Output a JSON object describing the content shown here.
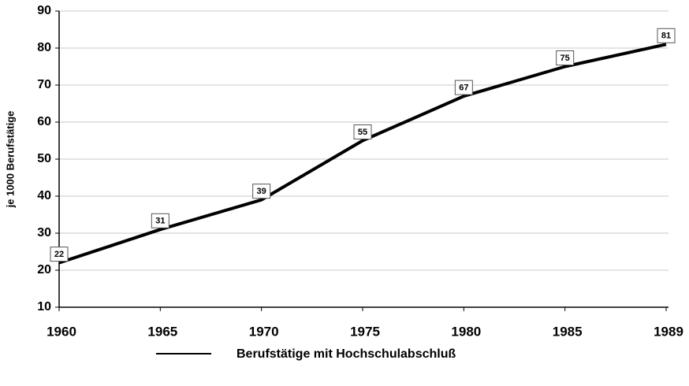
{
  "chart_data": {
    "type": "line",
    "categories": [
      "1960",
      "1965",
      "1970",
      "1975",
      "1980",
      "1985",
      "1989"
    ],
    "series": [
      {
        "name": "Berufstätige mit Hochschulabschluß",
        "color": "#000000",
        "values": [
          22,
          31,
          39,
          55,
          67,
          75,
          81
        ]
      }
    ],
    "y_label": "je 1000 Berufstätige",
    "ylim": [
      10,
      90
    ],
    "yticks": [
      10,
      20,
      30,
      40,
      50,
      60,
      70,
      80,
      90
    ],
    "grid": true,
    "legend": "bottom",
    "data_labels": true
  }
}
